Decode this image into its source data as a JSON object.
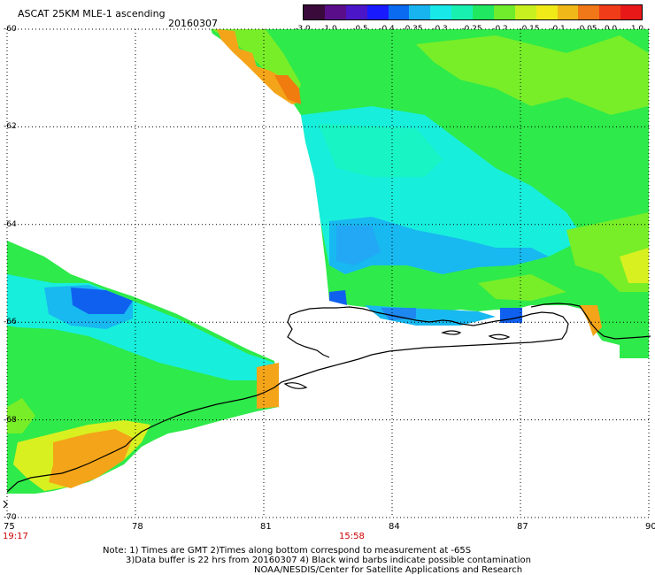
{
  "header": {
    "title": "ASCAT 25KM MLE-1 ascending",
    "date": "20160307"
  },
  "colorbar": {
    "ticks": [
      "-3.0",
      "-1.0",
      "-0.5",
      "-0.4",
      "-0.35",
      "-0.3",
      "-0.25",
      "-0.2",
      "-0.15",
      "-0.1",
      "-0.05",
      "0.0",
      "1.0"
    ],
    "colors": [
      "#3a0a3a",
      "#5a0e8a",
      "#4b16c8",
      "#1a1aff",
      "#0a6af0",
      "#18b4f0",
      "#18e8e8",
      "#18f0b0",
      "#20e860",
      "#70ec2c",
      "#c8f020",
      "#f0ea18",
      "#f0b818",
      "#f07818",
      "#f03c18",
      "#e81818"
    ]
  },
  "map": {
    "lon_ticks": [
      "75",
      "78",
      "81",
      "84",
      "87",
      "90"
    ],
    "lat_ticks": [
      "-60",
      "-62",
      "-64",
      "-66",
      "-68",
      "-70"
    ],
    "lon_range": [
      75,
      90
    ],
    "lat_range": [
      -60,
      -70
    ]
  },
  "times": {
    "left": "19:17",
    "middle": "15:58"
  },
  "footer": {
    "line1": "Note: 1) Times are GMT 2)Times along bottom correspond to measurement at -65S",
    "line2": "3)Data buffer is 22 hrs from 20160307 4) Black wind barbs indicate possible contamination",
    "line3": "NOAA/NESDIS/Center for Satellite Applications and Research"
  },
  "colors": {
    "cyan": "#18eedc",
    "aqua": "#18f4c4",
    "green": "#2eea4a",
    "lime": "#78ee28",
    "yellow": "#d8f020",
    "orange": "#f4a418",
    "darkorange": "#f07c10",
    "blue": "#1060f0",
    "lightblue": "#18b8f0"
  }
}
